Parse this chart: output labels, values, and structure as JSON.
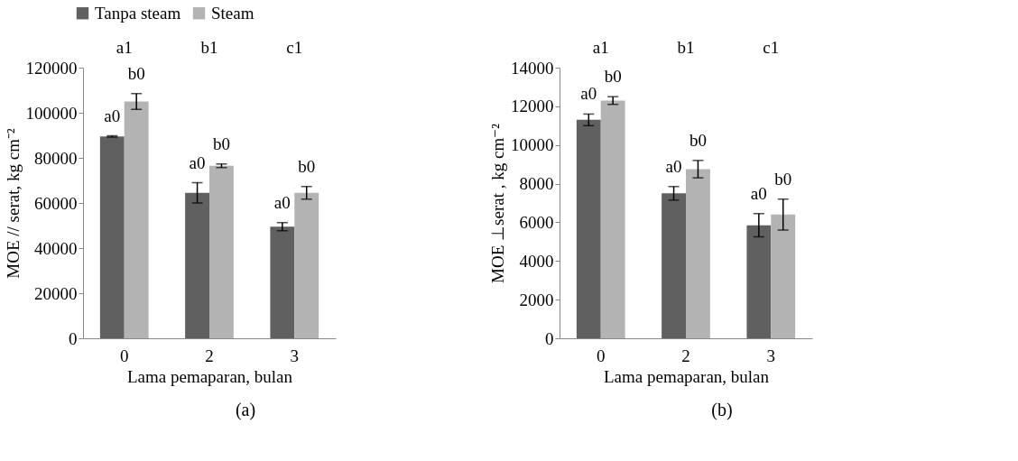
{
  "chart_data": [
    {
      "type": "bar",
      "categories": [
        "0",
        "2",
        "3"
      ],
      "xlabel": "Lama pemaparan, bulan",
      "ylabel": "MOE // serat, kg cm⁻²",
      "ylim": [
        0,
        120000
      ],
      "yticks": [
        0,
        20000,
        40000,
        60000,
        80000,
        100000,
        120000
      ],
      "grid": false,
      "legend": "top",
      "series": [
        {
          "name": "Tanpa steam",
          "color": "#606060",
          "values": [
            89500,
            64500,
            49500
          ],
          "errors": [
            300,
            4500,
            1800
          ],
          "value_labels": [
            "a0",
            "a0",
            "a0"
          ]
        },
        {
          "name": "Steam",
          "color": "#b3b3b3",
          "values": [
            105000,
            76500,
            64500
          ],
          "errors": [
            3500,
            800,
            2800
          ],
          "value_labels": [
            "b0",
            "b0",
            "b0"
          ]
        }
      ],
      "annotations": [
        "a1",
        "b1",
        "c1",
        "(a)"
      ]
    },
    {
      "type": "bar",
      "categories": [
        "0",
        "2",
        "3"
      ],
      "xlabel": "Lama pemaparan, bulan",
      "ylabel": "MOE ⊥serat , kg cm⁻²",
      "ylim": [
        0,
        14000
      ],
      "yticks": [
        0,
        2000,
        4000,
        6000,
        8000,
        10000,
        12000,
        14000
      ],
      "grid": false,
      "legend": "top",
      "series": [
        {
          "name": "Tanpa steam",
          "color": "#606060",
          "values": [
            11300,
            7500,
            5850
          ],
          "errors": [
            300,
            350,
            600
          ],
          "value_labels": [
            "a0",
            "a0",
            "a0"
          ]
        },
        {
          "name": "Steam",
          "color": "#b3b3b3",
          "values": [
            12300,
            8750,
            6400
          ],
          "errors": [
            200,
            450,
            800
          ],
          "value_labels": [
            "b0",
            "b0",
            "b0"
          ]
        }
      ],
      "annotations": [
        "a1",
        "b1",
        "c1",
        "(b)"
      ]
    }
  ]
}
